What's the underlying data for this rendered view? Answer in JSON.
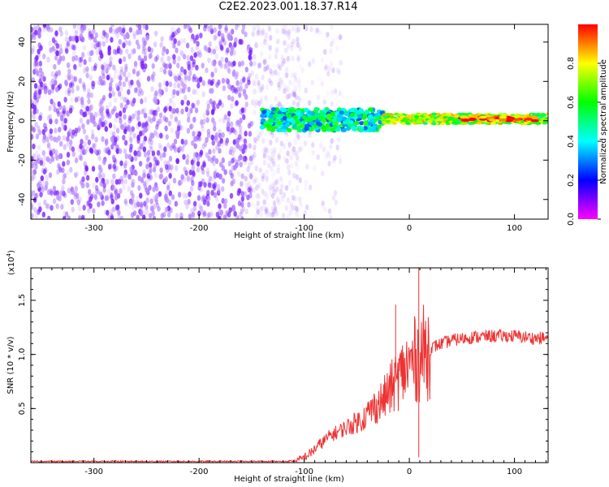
{
  "title": "C2E2.2023.001.18.37.R14",
  "chart_data": [
    {
      "type": "heatmap",
      "title": "C2E2.2023.001.18.37.R14",
      "xlabel": "Height of straight line (km)",
      "ylabel": "Frequency (Hz)",
      "xlim": [
        -360,
        132
      ],
      "ylim": [
        -50,
        49
      ],
      "x_ticks": [
        -300,
        -200,
        -100,
        0,
        100
      ],
      "y_ticks": [
        -40,
        -20,
        0,
        20,
        40
      ],
      "colorbar": {
        "label": "Normalized spectral amplitude",
        "range": [
          0,
          1
        ],
        "ticks": [
          0.0,
          0.2,
          0.4,
          0.6,
          0.8
        ],
        "colors": [
          "#ff00ff",
          "#0000ff",
          "#00ffff",
          "#00ff00",
          "#ffff00",
          "#ff0000"
        ]
      },
      "series": [
        {
          "values": [
            {
              "x": [
                -360,
                -105
              ],
              "y": [
                -50,
                49
              ],
              "level": 0.1
            },
            {
              "x": [
                -140,
                -25
              ],
              "y": [
                -5,
                6
              ],
              "level": 0.45
            },
            {
              "x": [
                -25,
                132
              ],
              "y": [
                -1.5,
                3.5
              ],
              "level": 0.7
            },
            {
              "x": [
                50,
                120
              ],
              "y": [
                0,
                2
              ],
              "level": 0.95
            }
          ]
        }
      ]
    },
    {
      "type": "line",
      "xlabel": "Height of straight line (km)",
      "ylabel": "SNR (10 * v/v)",
      "scale_label": "(x10",
      "scale_exp": "4",
      "xlim": [
        -360,
        132
      ],
      "ylim": [
        0,
        1.8
      ],
      "x_ticks": [
        -300,
        -200,
        -100,
        0,
        100
      ],
      "y_ticks": [
        0.5,
        1.0,
        1.5
      ],
      "grid": false,
      "series": [
        {
          "color": "#ee3333",
          "x": [
            -360,
            -300,
            -200,
            -120,
            -105,
            -95,
            -85,
            -75,
            -65,
            -55,
            -45,
            -35,
            -25,
            -15,
            -5,
            5,
            15,
            25,
            40,
            60,
            80,
            100,
            120,
            132
          ],
          "y": [
            0.01,
            0.01,
            0.01,
            0.01,
            0.02,
            0.08,
            0.17,
            0.25,
            0.3,
            0.35,
            0.4,
            0.5,
            0.58,
            0.72,
            0.85,
            0.95,
            1.02,
            1.08,
            1.13,
            1.16,
            1.17,
            1.17,
            1.15,
            1.15
          ]
        }
      ],
      "spikes": [
        {
          "x": -13,
          "y": 1.46
        },
        {
          "x": 9,
          "y": 1.8
        },
        {
          "x": 9,
          "y": 0.05
        }
      ]
    }
  ]
}
